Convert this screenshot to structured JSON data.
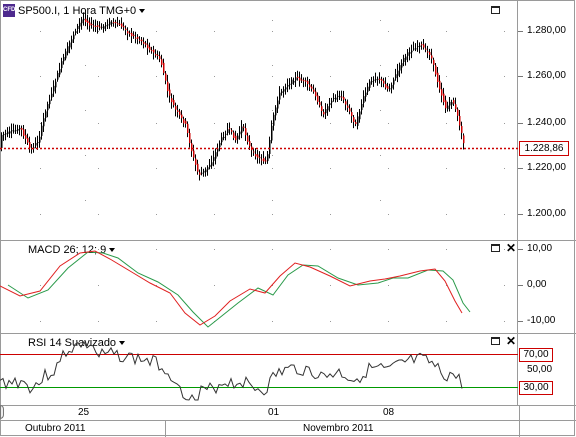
{
  "price_pane": {
    "symbol": "SP500.I",
    "timeframe": "1 Hora",
    "timezone": "TMG+0",
    "cfd_badge": "CFD",
    "current_price_label": "1.228,86",
    "axis_ticks": [
      "1.280,00",
      "1.260,00",
      "1.240,00",
      "1.220,00",
      "1.200,00"
    ]
  },
  "macd_pane": {
    "title": "MACD 26; 12; 9",
    "axis_ticks": [
      "10,00",
      "0,00",
      "-10,00"
    ]
  },
  "rsi_pane": {
    "title": "RSI 14 Suavizado",
    "axis_ticks": [
      "70,00",
      "50,00",
      "30,00"
    ],
    "upper_level_label": "70,00",
    "lower_level_label": "30,00"
  },
  "date_axis": {
    "day_labels": [
      "25",
      "01",
      "08"
    ],
    "month_labels": [
      "Outubro 2011",
      "Novembro 2011"
    ]
  },
  "colors": {
    "bull_candle": "#000000",
    "bear_candle": "#cc0000",
    "price_line": "#cc0000",
    "macd_line": "#e02020",
    "signal_line": "#2a9a4a",
    "rsi_line": "#333333",
    "rsi_upper": "#cc0000",
    "rsi_lower": "#009900"
  }
}
